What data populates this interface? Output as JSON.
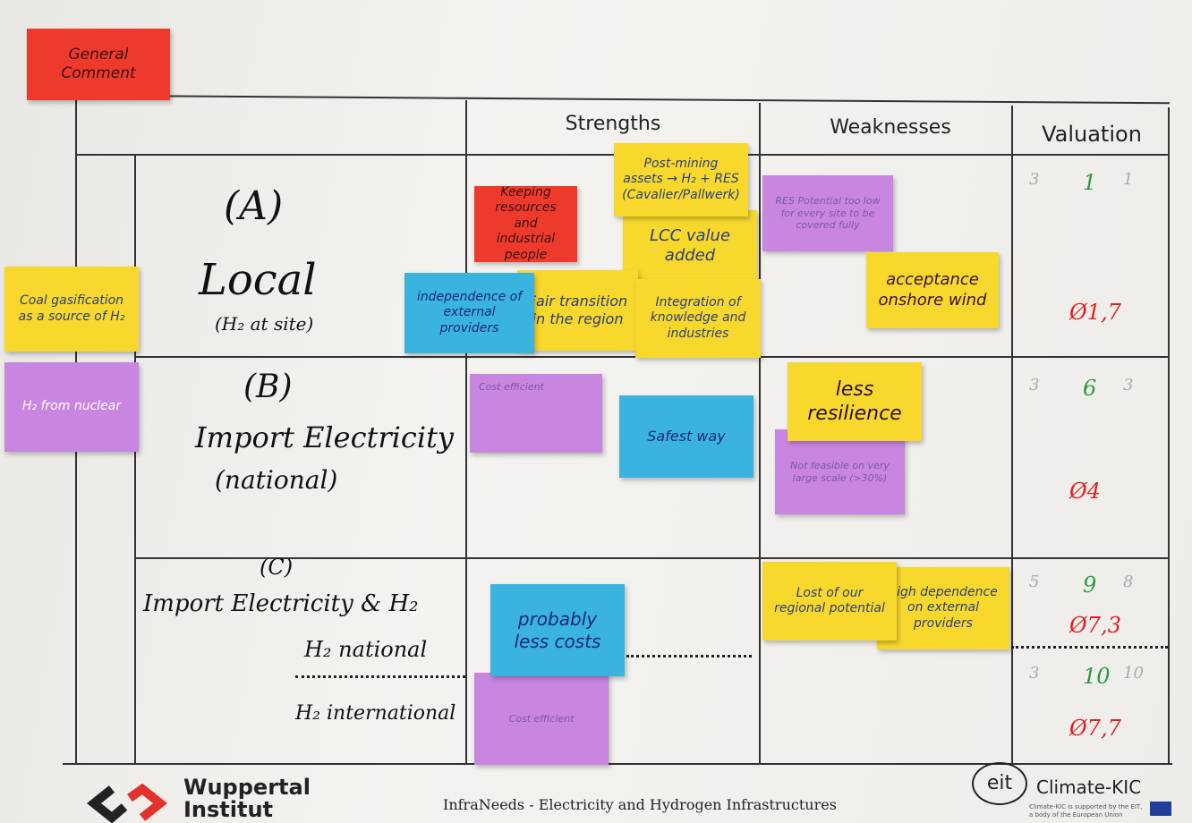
{
  "general_comment": "General Comment",
  "table": {
    "headers": [
      "Strengths",
      "Weaknesses",
      "Valuation"
    ],
    "rows": [
      {
        "label": "(A)",
        "name": "Local",
        "sub": "(H₂ at site)"
      },
      {
        "label": "(B)",
        "name": "Import Electricity",
        "sub": "(national)"
      },
      {
        "label": "(C)",
        "name": "Import Electricity & H₂",
        "sub": "H₂ national",
        "sub2": "H₂ international"
      }
    ],
    "valuation": [
      [
        "3",
        "1",
        "1",
        "Ø1,7"
      ],
      [
        "3",
        "6",
        "3",
        "Ø4"
      ],
      [
        "5",
        "9",
        "8",
        "Ø7,3"
      ],
      [
        "3",
        "10",
        "10",
        "Ø7,7"
      ]
    ]
  },
  "notes": [
    "Coal gasification as a source of H₂",
    "H₂ from nuclear",
    "Keeping resources and industrial people",
    "Post-mining assets → H₂ + RES (Cavalier/Pallwerk)",
    "LCC value added",
    "independence of external providers",
    "Fair transition in the region",
    "Integration of knowledge and industries",
    "RES Potential too low for every site to be covered fully",
    "acceptance onshore wind",
    "Cost efficient",
    "Safest way",
    "less resilience",
    "Not feasible on very large scale (>30%)",
    "probably less costs",
    "Cost efficient",
    "Lost of our regional potential",
    "high dependence on external providers"
  ],
  "footer": {
    "left_logo": "Wuppertal Institut",
    "center": "InfraNeeds - Electricity and Hydrogen Infrastructures",
    "eit": "eit",
    "right_logo": "Climate-KIC",
    "right_note": "Climate-KIC is supported by the EIT, a body of the European Union"
  }
}
